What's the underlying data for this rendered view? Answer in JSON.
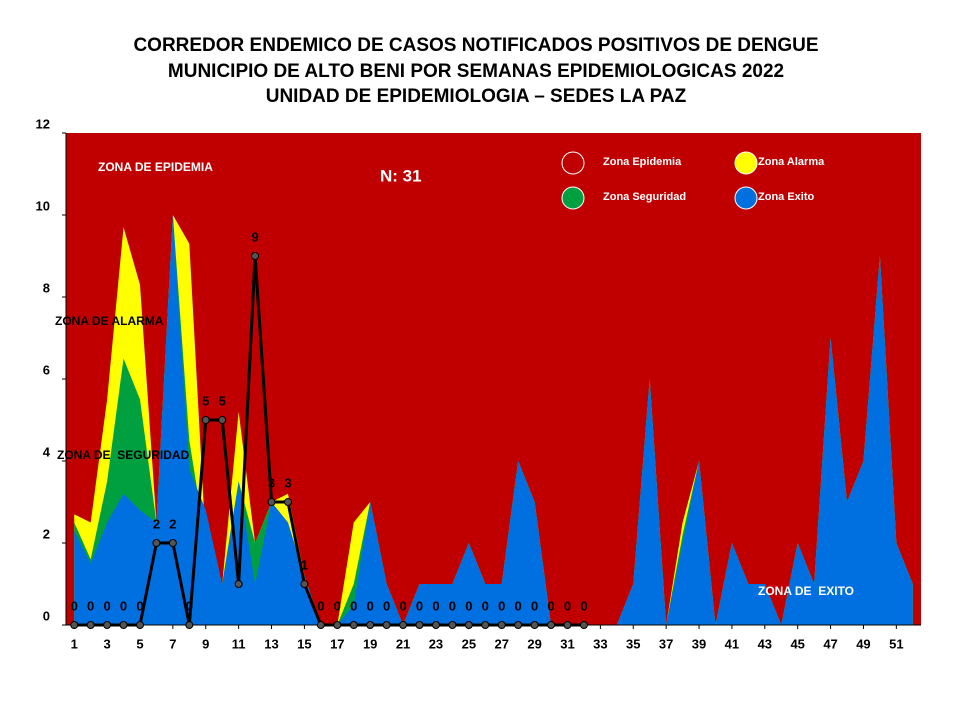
{
  "chart_data": {
    "type": "area",
    "title": [
      "CORREDOR ENDEMICO DE CASOS NOTIFICADOS POSITIVOS DE DENGUE",
      "MUNICIPIO DE ALTO BENI POR SEMANAS EPIDEMIOLOGICAS 2022",
      "UNIDAD DE EPIDEMIOLOGIA – SEDES LA PAZ"
    ],
    "annotations": [
      "ZONA DE EPIDEMIA",
      "N: 31",
      "ZONA DE ALARMA",
      "ZONA DE  SEGURIDAD",
      "ZONA DE  EXITO"
    ],
    "x": [
      1,
      2,
      3,
      4,
      5,
      6,
      7,
      8,
      9,
      10,
      11,
      12,
      13,
      14,
      15,
      16,
      17,
      18,
      19,
      20,
      21,
      22,
      23,
      24,
      25,
      26,
      27,
      28,
      29,
      30,
      31,
      32,
      33,
      34,
      35,
      36,
      37,
      38,
      39,
      40,
      41,
      42,
      43,
      44,
      45,
      46,
      47,
      48,
      49,
      50,
      51,
      52
    ],
    "xlim": [
      0.5,
      52.5
    ],
    "xticks": [
      1,
      3,
      5,
      7,
      9,
      11,
      13,
      15,
      17,
      19,
      21,
      23,
      25,
      27,
      29,
      31,
      33,
      35,
      37,
      39,
      41,
      43,
      45,
      47,
      49,
      51
    ],
    "ylim": [
      0,
      12
    ],
    "yticks": [
      0,
      2,
      4,
      6,
      8,
      10,
      12
    ],
    "epidemic_zone": {
      "name": "Zona Epidemia",
      "color": "#c00000"
    },
    "series": [
      {
        "name": "Zona Alarma",
        "color": "#ffff00",
        "values": [
          2.7,
          2.5,
          5.5,
          9.7,
          8.3,
          2.5,
          10,
          9.3,
          2,
          1,
          5.2,
          2,
          3,
          3.2,
          1.2,
          0,
          0,
          2.5,
          3,
          1,
          0,
          1,
          1,
          1,
          2,
          1,
          1,
          4,
          3,
          0,
          0,
          0,
          0,
          0,
          1,
          6,
          0,
          2.5,
          4,
          0,
          2,
          1,
          1,
          0,
          2,
          1,
          7,
          3,
          4,
          9,
          2,
          1
        ]
      },
      {
        "name": "Zona Seguridad",
        "color": "#00a040",
        "values": [
          2.5,
          1.6,
          3.5,
          6.5,
          5.5,
          2.5,
          10,
          4.5,
          2,
          1,
          3.5,
          2,
          3,
          2,
          1.2,
          0,
          0,
          1,
          3,
          1,
          0,
          1,
          1,
          1,
          2,
          1,
          1,
          4,
          3,
          0,
          0,
          0,
          0,
          0,
          1,
          6,
          0,
          2.2,
          4,
          0,
          2,
          1,
          1,
          0,
          2,
          1,
          7,
          3,
          4,
          9,
          2,
          1
        ]
      },
      {
        "name": "Zona Exito",
        "color": "#0070e0",
        "values": [
          2.3,
          1.5,
          2.5,
          3.2,
          2.8,
          2.5,
          10,
          3.8,
          2.8,
          1,
          3.5,
          1,
          3,
          2.5,
          1.2,
          0,
          0,
          0.5,
          3,
          1,
          0,
          1,
          1,
          1,
          2,
          1,
          1,
          4,
          3,
          0,
          0,
          0,
          0,
          0,
          1,
          6,
          0,
          2,
          4,
          0,
          2,
          1,
          1,
          0,
          2,
          1,
          7,
          3,
          4,
          9,
          2,
          1
        ]
      }
    ],
    "cases": {
      "color": "#000000",
      "values": [
        0,
        0,
        0,
        0,
        0,
        2,
        2,
        0,
        5,
        5,
        1,
        9,
        3,
        3,
        1,
        0,
        0,
        0,
        0,
        0,
        0,
        0,
        0,
        0,
        0,
        0,
        0,
        0,
        0,
        0,
        0,
        0,
        null,
        null,
        null,
        null,
        null,
        null,
        null,
        null,
        null,
        null,
        null,
        null,
        null,
        null,
        null,
        null,
        null,
        null,
        null,
        null
      ],
      "value_labels": [
        "0",
        "0",
        "0",
        "0",
        "0",
        "2",
        "2",
        "0",
        "5",
        "5",
        null,
        "9",
        "3",
        "3",
        "1",
        "0",
        "0",
        "0",
        "0",
        "0",
        "0",
        "0",
        "0",
        "0",
        "0",
        "0",
        "0",
        "0",
        "0",
        "0",
        "0",
        "0",
        null,
        null,
        null,
        null,
        null,
        null,
        null,
        null,
        null,
        null,
        null,
        null,
        null,
        null,
        null,
        null,
        null,
        null,
        null,
        null
      ]
    }
  }
}
